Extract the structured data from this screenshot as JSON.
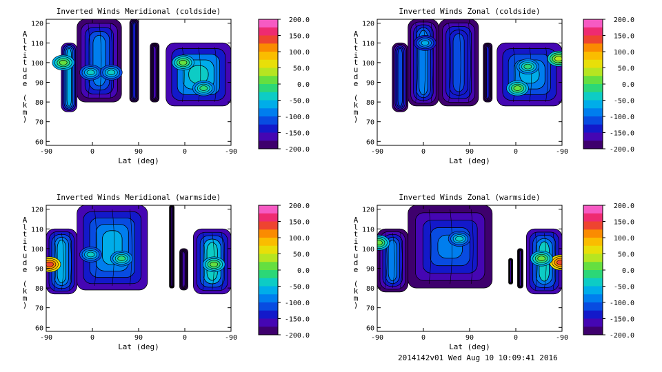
{
  "chart_data": [
    {
      "type": "heatmap",
      "title": "Inverted Winds Meridional (coldside)",
      "xlabel": "Lat (deg)",
      "ylabel": "Altitude (km)",
      "x_ticks": [
        "-90",
        "0",
        "90",
        "0",
        "-90"
      ],
      "y_ticks": [
        60,
        70,
        80,
        90,
        100,
        110,
        120
      ],
      "ylim": [
        58,
        122
      ],
      "colorbar_levels": [
        "200.0",
        "150.0",
        "100.0",
        "50.0",
        "0.0",
        "-50.0",
        "-100.0",
        "-150.0",
        "-200.0"
      ],
      "colorbar_range": [
        -200,
        200
      ],
      "regions": [
        {
          "x": [
            -68,
            -45
          ],
          "alt": [
            75,
            110
          ],
          "value": -60
        },
        {
          "x": [
            -45,
            20
          ],
          "alt": [
            80,
            122
          ],
          "value": -80
        },
        {
          "x": [
            32,
            45
          ],
          "alt": [
            80,
            122
          ],
          "value": -130
        },
        {
          "x": [
            62,
            75
          ],
          "alt": [
            80,
            110
          ],
          "value": -160
        },
        {
          "x": [
            85,
            180
          ],
          "alt": [
            78,
            110
          ],
          "value": -30
        }
      ],
      "hotspots": [
        {
          "x": -65,
          "alt": 100,
          "value": 20
        },
        {
          "x": 110,
          "alt": 100,
          "value": 15
        },
        {
          "x": 140,
          "alt": 87,
          "value": -10
        },
        {
          "x": -25,
          "alt": 95,
          "value": -40
        },
        {
          "x": 5,
          "alt": 95,
          "value": -40
        }
      ]
    },
    {
      "type": "heatmap",
      "title": "Inverted Winds Zonal (coldside)",
      "xlabel": "Lat (deg)",
      "ylabel": "Altitude (km)",
      "x_ticks": [
        "-90",
        "0",
        "90",
        "0",
        "-90"
      ],
      "y_ticks": [
        60,
        70,
        80,
        90,
        100,
        110,
        120
      ],
      "ylim": [
        58,
        122
      ],
      "colorbar_levels": [
        "200.0",
        "150.0",
        "100.0",
        "50.0",
        "0.0",
        "-50.0",
        "-100.0",
        "-150.0",
        "-200.0"
      ],
      "colorbar_range": [
        -200,
        200
      ],
      "regions": [
        {
          "x": [
            -68,
            -45
          ],
          "alt": [
            75,
            110
          ],
          "value": -110
        },
        {
          "x": [
            -45,
            0
          ],
          "alt": [
            78,
            122
          ],
          "value": -90
        },
        {
          "x": [
            0,
            58
          ],
          "alt": [
            78,
            122
          ],
          "value": -110
        },
        {
          "x": [
            65,
            78
          ],
          "alt": [
            80,
            110
          ],
          "value": -150
        },
        {
          "x": [
            85,
            180
          ],
          "alt": [
            78,
            110
          ],
          "value": -70
        }
      ],
      "hotspots": [
        {
          "x": 115,
          "alt": 87,
          "value": 10
        },
        {
          "x": 130,
          "alt": 98,
          "value": -20
        },
        {
          "x": 175,
          "alt": 102,
          "value": 30
        },
        {
          "x": -20,
          "alt": 110,
          "value": -70
        }
      ]
    },
    {
      "type": "heatmap",
      "title": "Inverted Winds Meridional (warmside)",
      "xlabel": "Lat (deg)",
      "ylabel": "Altitude (km)",
      "x_ticks": [
        "-90",
        "0",
        "90",
        "0",
        "-90"
      ],
      "y_ticks": [
        60,
        70,
        80,
        90,
        100,
        110,
        120
      ],
      "ylim": [
        58,
        122
      ],
      "colorbar_levels": [
        "200.0",
        "150.0",
        "100.0",
        "50.0",
        "0.0",
        "-50.0",
        "-100.0",
        "-150.0",
        "-200.0"
      ],
      "colorbar_range": [
        -200,
        200
      ],
      "regions": [
        {
          "x": [
            -90,
            -45
          ],
          "alt": [
            77,
            110
          ],
          "value": -60
        },
        {
          "x": [
            -45,
            58
          ],
          "alt": [
            79,
            122
          ],
          "value": -70
        },
        {
          "x": [
            90,
            97
          ],
          "alt": [
            80,
            122
          ],
          "value": -160
        },
        {
          "x": [
            105,
            117
          ],
          "alt": [
            79,
            100
          ],
          "value": -160
        },
        {
          "x": [
            125,
            180
          ],
          "alt": [
            77,
            110
          ],
          "value": -40
        }
      ],
      "hotspots": [
        {
          "x": -85,
          "alt": 92,
          "value": 130
        },
        {
          "x": 155,
          "alt": 92,
          "value": 10
        },
        {
          "x": 20,
          "alt": 95,
          "value": -20
        },
        {
          "x": -25,
          "alt": 97,
          "value": -50
        }
      ]
    },
    {
      "type": "heatmap",
      "title": "Inverted Winds Zonal (warmside)",
      "xlabel": "Lat (deg)",
      "ylabel": "Altitude (km)",
      "x_ticks": [
        "-90",
        "0",
        "90",
        "0",
        "-90"
      ],
      "y_ticks": [
        60,
        70,
        80,
        90,
        100,
        110,
        120
      ],
      "ylim": [
        58,
        122
      ],
      "colorbar_levels": [
        "200.0",
        "150.0",
        "100.0",
        "50.0",
        "0.0",
        "-50.0",
        "-100.0",
        "-150.0",
        "-200.0"
      ],
      "colorbar_range": [
        -200,
        200
      ],
      "regions": [
        {
          "x": [
            -90,
            -45
          ],
          "alt": [
            78,
            110
          ],
          "value": -80
        },
        {
          "x": [
            -45,
            78
          ],
          "alt": [
            80,
            122
          ],
          "value": -90
        },
        {
          "x": [
            102,
            108
          ],
          "alt": [
            82,
            95
          ],
          "value": -170
        },
        {
          "x": [
            115,
            123
          ],
          "alt": [
            80,
            100
          ],
          "value": -160
        },
        {
          "x": [
            128,
            180
          ],
          "alt": [
            77,
            110
          ],
          "value": -50
        }
      ],
      "hotspots": [
        {
          "x": 178,
          "alt": 93,
          "value": 130
        },
        {
          "x": 150,
          "alt": 95,
          "value": 20
        },
        {
          "x": -88,
          "alt": 103,
          "value": 0
        },
        {
          "x": 30,
          "alt": 105,
          "value": -40
        }
      ]
    }
  ],
  "footer": "2014142v01 Wed Aug 10 10:09:41 2016"
}
